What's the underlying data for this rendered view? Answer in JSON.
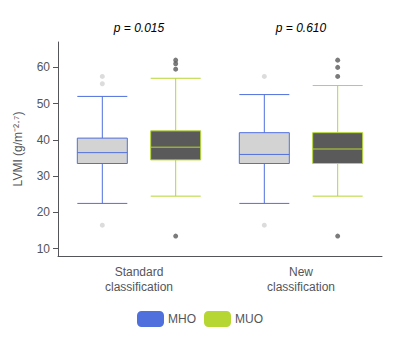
{
  "chart_data": {
    "type": "boxplot",
    "categories": [
      "Standard\nclassification",
      "New\nclassification"
    ],
    "ylabel": "LVMI (g/m⁻²·⁷)",
    "annotations": [
      "p = 0.015",
      "p = 0.610"
    ],
    "series": [
      {
        "name": "MHO",
        "color": "#d3d3d3",
        "values": [
          {
            "whisker_low": 22.5,
            "q1": 33.5,
            "median": 36.5,
            "q3": 40.5,
            "whisker_high": 52.0,
            "fliers_low": [
              16.5
            ],
            "fliers_high": [
              55.5,
              57.5
            ]
          },
          {
            "whisker_low": 22.5,
            "q1": 33.5,
            "median": 36.0,
            "q3": 42.0,
            "whisker_high": 52.5,
            "fliers_low": [
              16.5
            ],
            "fliers_high": [
              57.5
            ]
          }
        ]
      },
      {
        "name": "MUO",
        "color": "#5a5a5a",
        "values": [
          {
            "whisker_low": 24.5,
            "q1": 34.5,
            "median": 38.0,
            "q3": 42.5,
            "whisker_high": 57.0,
            "fliers_low": [
              13.5
            ],
            "fliers_high": [
              59.5,
              61.0,
              62.0
            ]
          },
          {
            "whisker_low": 24.5,
            "q1": 33.5,
            "median": 37.5,
            "q3": 42.0,
            "whisker_high": 55.0,
            "fliers_low": [
              13.5
            ],
            "fliers_high": [
              57.5,
              60.0,
              62.0
            ]
          }
        ]
      }
    ],
    "ylim": [
      8,
      67
    ],
    "yticks": [
      10,
      20,
      30,
      40,
      50,
      60
    ],
    "grid": false,
    "legend": "bottom"
  }
}
